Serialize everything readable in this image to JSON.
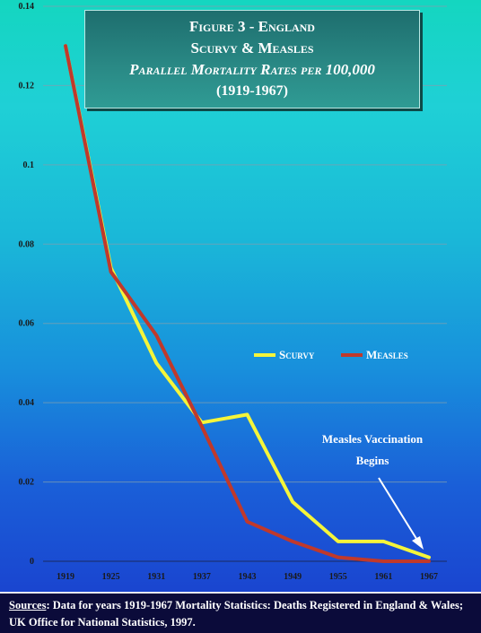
{
  "title": {
    "line1": "Figure 3 - England",
    "line2": "Scurvy & Measles",
    "line3": "Parallel Mortality Rates per 100,000",
    "line4": "(1919-1967)"
  },
  "legend": [
    {
      "name": "Scurvy",
      "color": "#f5f53a"
    },
    {
      "name": "Measles",
      "color": "#c0392b"
    }
  ],
  "annotation": {
    "line1": "Measles Vaccination",
    "line2": "Begins"
  },
  "footer": {
    "label": "Sources",
    "text": ": Data for years 1919-1967 Mortality Statistics: Deaths Registered in England & Wales;  UK Office for National Statistics, 1997."
  },
  "chart_data": {
    "type": "line",
    "title": "Figure 3 - England Scurvy & Measles Parallel Mortality Rates per 100,000 (1919-1967)",
    "categories": [
      "1919",
      "1925",
      "1931",
      "1937",
      "1943",
      "1949",
      "1955",
      "1961",
      "1967"
    ],
    "yticks": [
      "0",
      "0.02",
      "0.04",
      "0.06",
      "0.08",
      "0.1",
      "0.12",
      "0.14"
    ],
    "ylim": [
      0,
      0.14
    ],
    "grid": true,
    "legend_position": "right-middle",
    "series": [
      {
        "name": "Scurvy",
        "color": "#f5f53a",
        "values": [
          0.13,
          0.074,
          0.05,
          0.035,
          0.037,
          0.015,
          0.005,
          0.005,
          0.001
        ]
      },
      {
        "name": "Measles",
        "color": "#c0392b",
        "values": [
          0.13,
          0.073,
          0.057,
          0.034,
          0.01,
          0.005,
          0.001,
          0.0,
          0.0
        ]
      }
    ]
  }
}
